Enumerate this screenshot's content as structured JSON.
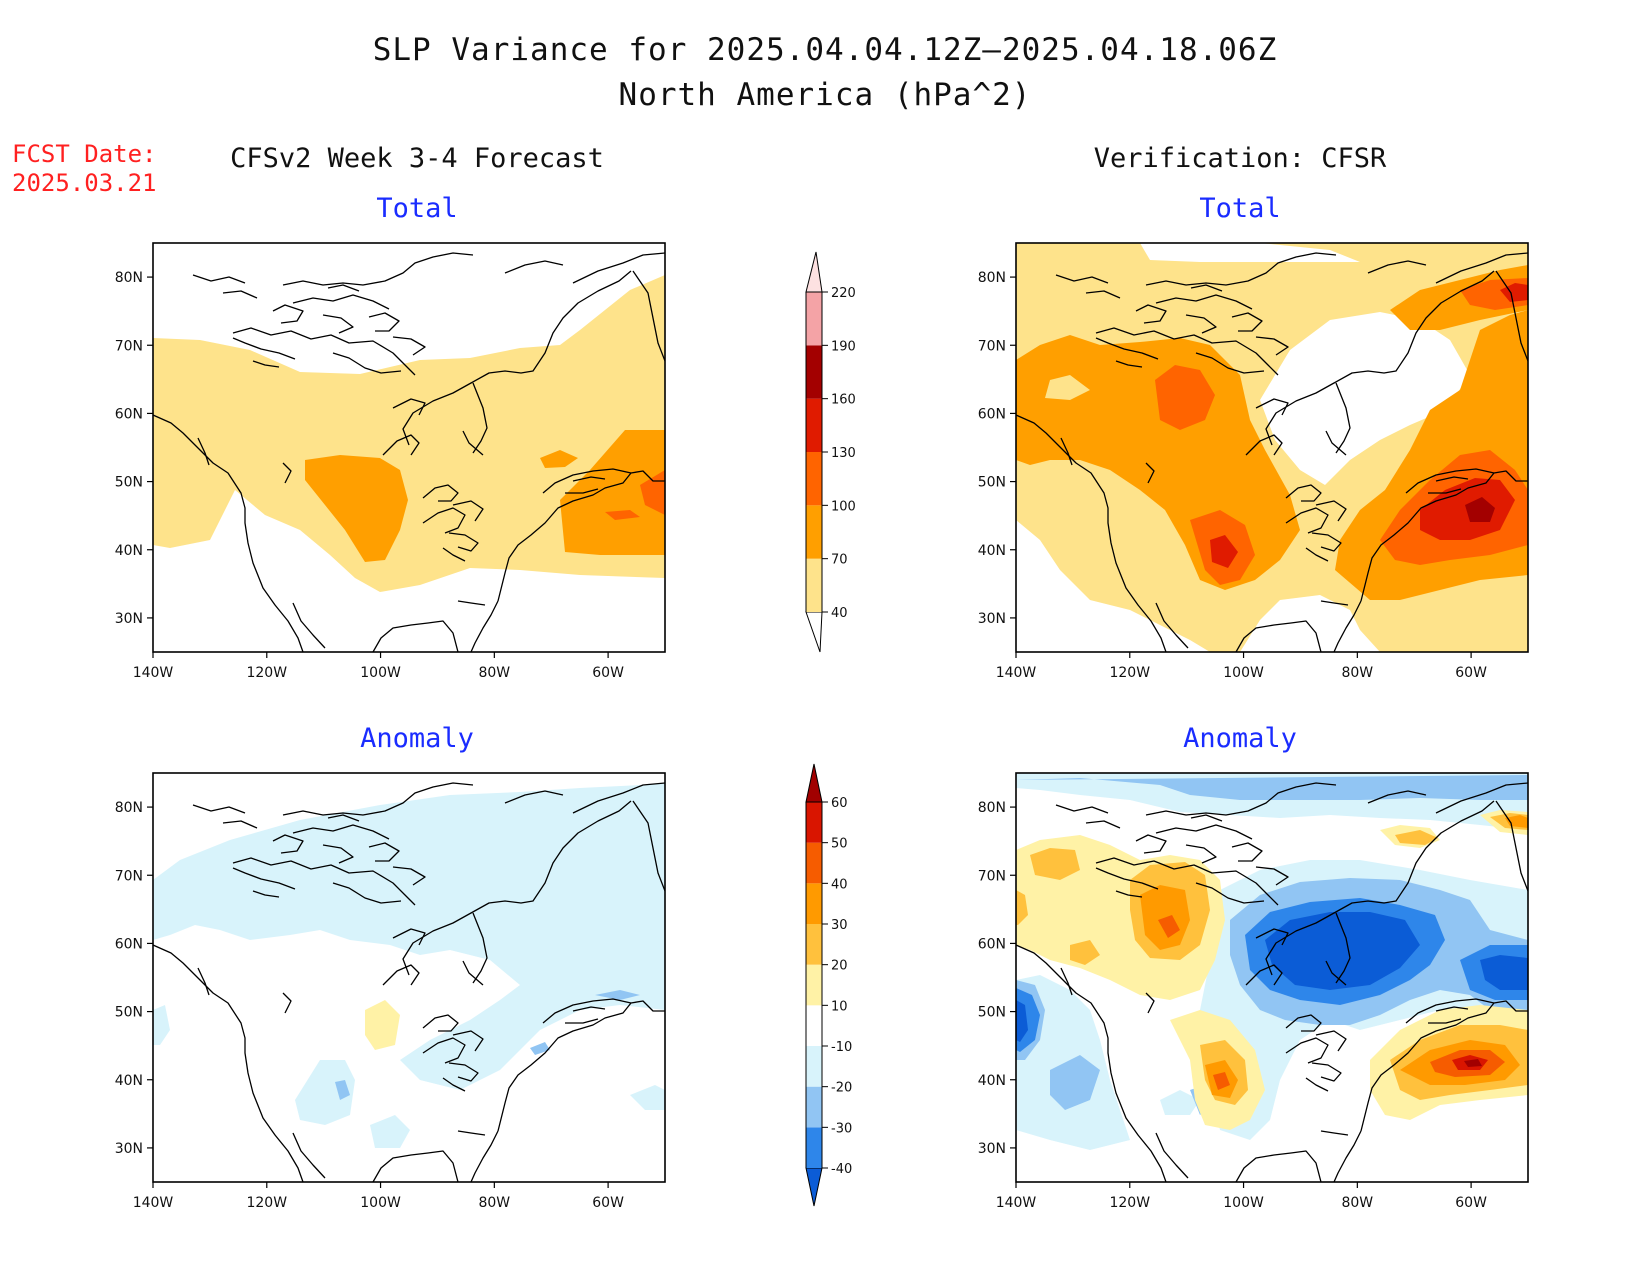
{
  "title": {
    "line1": "SLP Variance for 2025.04.04.12Z–2025.04.18.06Z",
    "line2": "North America (hPa^2)"
  },
  "fcst": {
    "line1": "FCST Date:",
    "line2": "2025.03.21"
  },
  "columns": {
    "left": "CFSv2 Week 3-4 Forecast",
    "right": "Verification: CFSR"
  },
  "panels": [
    {
      "id": "fcst-total",
      "subtitle": "Total"
    },
    {
      "id": "verif-total",
      "subtitle": "Total"
    },
    {
      "id": "fcst-anomaly",
      "subtitle": "Anomaly"
    },
    {
      "id": "verif-anomaly",
      "subtitle": "Anomaly"
    }
  ],
  "axes": {
    "lat_labels": [
      "80N",
      "70N",
      "60N",
      "50N",
      "40N",
      "30N"
    ],
    "lon_labels": [
      "140W",
      "120W",
      "100W",
      "80W",
      "60W"
    ]
  },
  "colorbars": {
    "total": {
      "labels": [
        "40",
        "70",
        "100",
        "130",
        "160",
        "190",
        "220"
      ],
      "colors": [
        "#fee38b",
        "#ff9f00",
        "#ff6400",
        "#e01b00",
        "#a30000",
        "#f4a3a6",
        "#fde1e1"
      ]
    },
    "anomaly": {
      "labels": [
        "-40",
        "-30",
        "-20",
        "-10",
        "10",
        "20",
        "30",
        "40",
        "50",
        "60"
      ],
      "colors": [
        "#0b5cd6",
        "#2e86ea",
        "#91c5f3",
        "#d8f3fb",
        "#ffffff",
        "#fff2a6",
        "#ffc13d",
        "#ff9a00",
        "#f65c00",
        "#d91500",
        "#a10000"
      ]
    }
  }
}
